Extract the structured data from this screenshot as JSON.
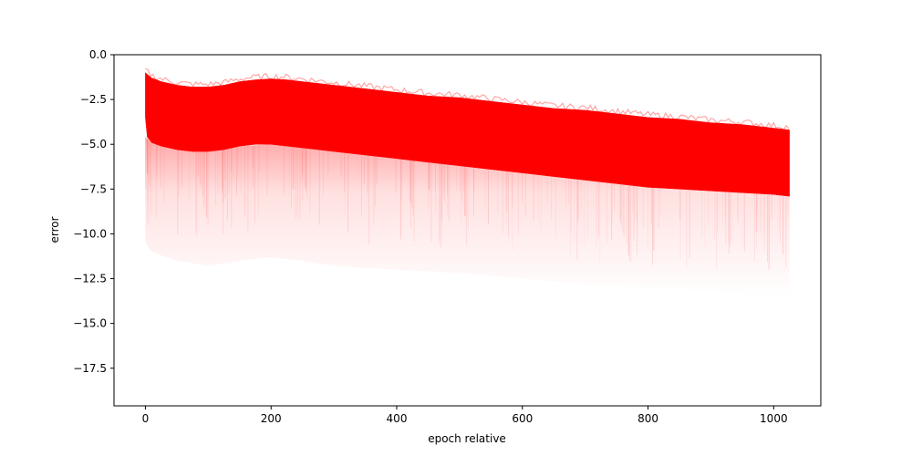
{
  "chart_data": {
    "type": "area",
    "title": "",
    "xlabel": "epoch relative",
    "ylabel": "error",
    "xlim": [
      -50,
      1075
    ],
    "ylim": [
      -19.6,
      0
    ],
    "x_ticks": [
      0,
      200,
      400,
      600,
      800,
      1000
    ],
    "x_tick_labels": [
      "0",
      "200",
      "400",
      "600",
      "800",
      "1000"
    ],
    "y_ticks": [
      0,
      -2.5,
      -5,
      -7.5,
      -10,
      -12.5,
      -15,
      -17.5
    ],
    "y_tick_labels": [
      "0.0",
      "−2.5",
      "−5.0",
      "−7.5",
      "−10.0",
      "−12.5",
      "−15.0",
      "−17.5"
    ],
    "grid": false,
    "color": "#ff0000",
    "series": [
      {
        "role": "dense-band",
        "x": [
          0,
          3,
          10,
          25,
          50,
          75,
          100,
          125,
          150,
          175,
          200,
          225,
          250,
          300,
          350,
          400,
          450,
          500,
          550,
          600,
          650,
          700,
          750,
          800,
          850,
          900,
          950,
          1000,
          1025
        ],
        "upper": [
          -1.0,
          -1.1,
          -1.3,
          -1.5,
          -1.7,
          -1.8,
          -1.8,
          -1.7,
          -1.5,
          -1.4,
          -1.35,
          -1.4,
          -1.5,
          -1.7,
          -1.9,
          -2.1,
          -2.3,
          -2.4,
          -2.6,
          -2.8,
          -3.0,
          -3.1,
          -3.3,
          -3.5,
          -3.6,
          -3.8,
          -3.9,
          -4.1,
          -4.2
        ],
        "lower": [
          -3.5,
          -4.6,
          -4.9,
          -5.1,
          -5.3,
          -5.4,
          -5.4,
          -5.3,
          -5.1,
          -5.0,
          -5.0,
          -5.1,
          -5.2,
          -5.4,
          -5.6,
          -5.8,
          -6.0,
          -6.2,
          -6.4,
          -6.6,
          -6.8,
          -7.0,
          -7.2,
          -7.4,
          -7.5,
          -7.6,
          -7.7,
          -7.8,
          -7.9
        ]
      },
      {
        "role": "faint-tail",
        "x": [
          0,
          10,
          50,
          100,
          150,
          200,
          250,
          300,
          400,
          500,
          600,
          700,
          800,
          900,
          1000,
          1025
        ],
        "upper": [
          -4.6,
          -4.9,
          -5.3,
          -5.4,
          -5.1,
          -5.0,
          -5.2,
          -5.4,
          -5.8,
          -6.2,
          -6.6,
          -7.0,
          -7.4,
          -7.6,
          -7.8,
          -7.9
        ],
        "lower": [
          -10.5,
          -11.0,
          -11.5,
          -11.8,
          -11.5,
          -11.3,
          -11.5,
          -11.8,
          -12.0,
          -12.2,
          -12.5,
          -12.8,
          -13.0,
          -13.2,
          -13.4,
          -13.5
        ]
      }
    ]
  }
}
